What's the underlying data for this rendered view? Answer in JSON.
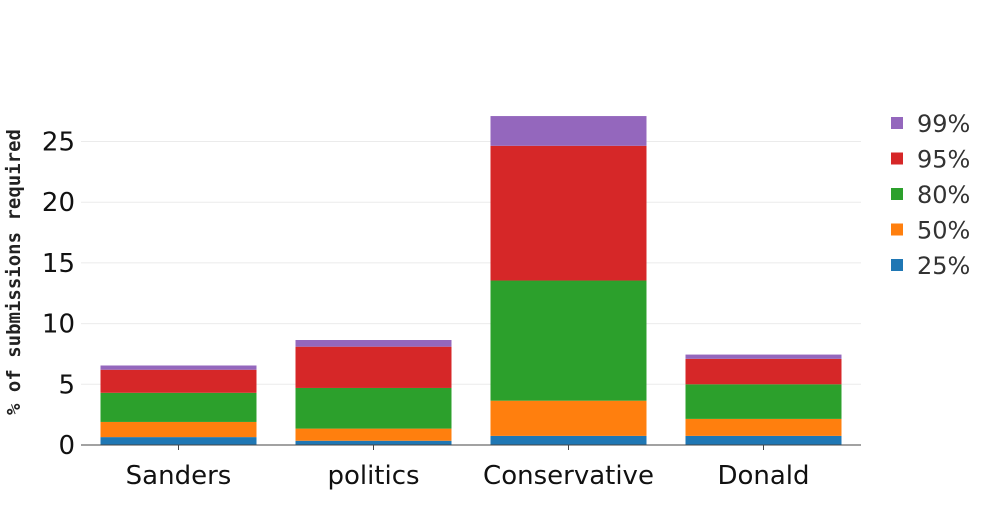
{
  "chart_data": {
    "type": "bar",
    "stacked": true,
    "title": "",
    "xlabel": "",
    "ylabel": "% of submissions required",
    "ylim": [
      0,
      29
    ],
    "yticks": [
      0,
      5,
      10,
      15,
      20,
      25
    ],
    "grid": true,
    "legend_position": "right",
    "categories": [
      "Sanders",
      "politics",
      "Conservative",
      "Donald"
    ],
    "series": [
      {
        "name": "25%",
        "color": "#1f77b4",
        "values": [
          0.65,
          0.35,
          0.75,
          0.75
        ]
      },
      {
        "name": "50%",
        "color": "#ff7f0e",
        "values": [
          1.25,
          1.0,
          2.9,
          1.4
        ]
      },
      {
        "name": "80%",
        "color": "#2ca02c",
        "values": [
          2.4,
          3.35,
          9.9,
          2.85
        ]
      },
      {
        "name": "95%",
        "color": "#d62728",
        "values": [
          1.9,
          3.4,
          11.1,
          2.1
        ]
      },
      {
        "name": "99%",
        "color": "#9467bd",
        "values": [
          0.35,
          0.55,
          2.45,
          0.35
        ]
      }
    ]
  }
}
